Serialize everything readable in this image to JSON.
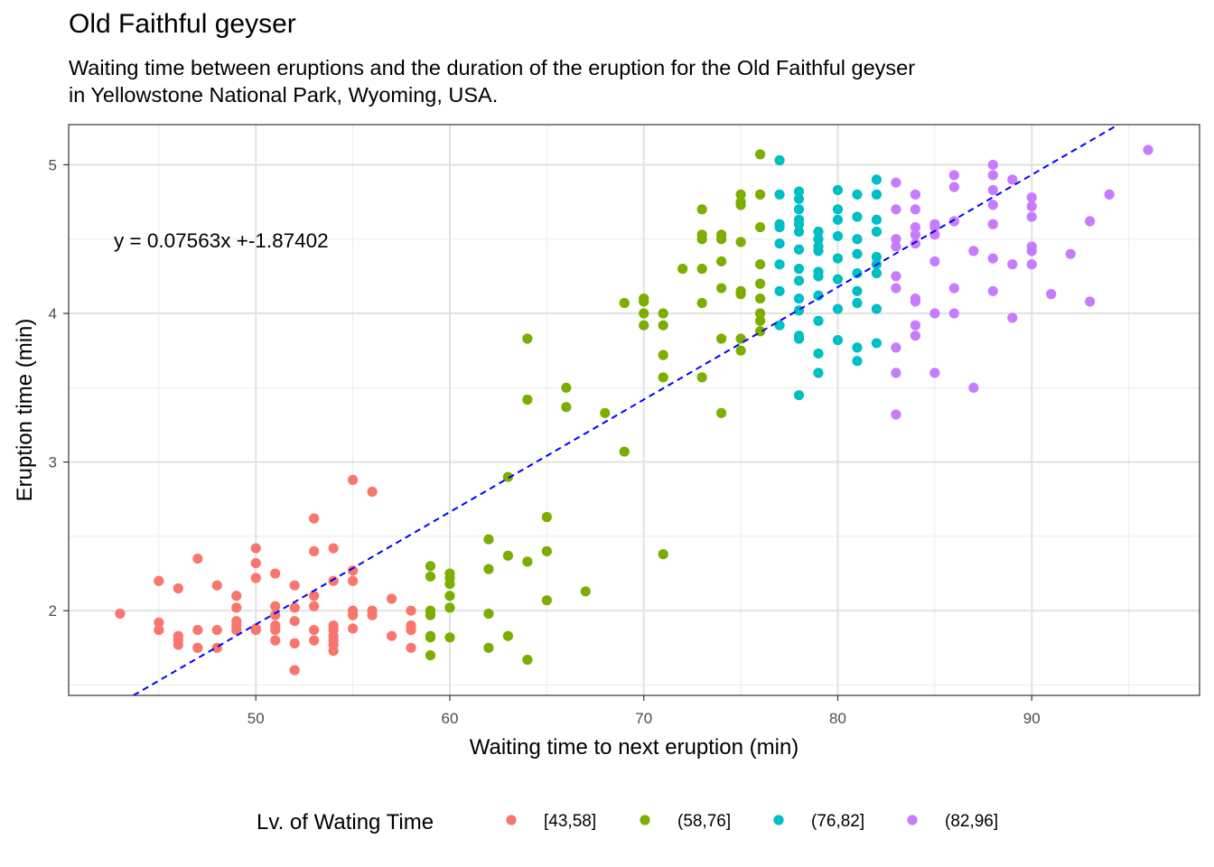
{
  "chart_data": {
    "type": "scatter",
    "title": "Old Faithful geyser",
    "subtitle_lines": [
      "Waiting time between eruptions and the duration of the eruption for the Old Faithful geyser",
      "in Yellowstone National Park, Wyoming, USA."
    ],
    "xlabel": "Waiting time to next eruption (min)",
    "ylabel": "Eruption time (min)",
    "xlim": [
      40.35,
      98.65
    ],
    "ylim": [
      1.43,
      5.27
    ],
    "xticks": [
      50,
      60,
      70,
      80,
      90
    ],
    "yticks": [
      2,
      3,
      4,
      5
    ],
    "grid": true,
    "legend_position": "bottom",
    "legend_title": "Lv. of Wating Time",
    "annotation": "y = 0.07563x +-1.87402",
    "regression": {
      "slope": 0.07563,
      "intercept": -1.87402
    },
    "series": [
      {
        "name": "[43,58]",
        "color": "#F8766D",
        "points": [
          [
            43,
            1.98
          ],
          [
            45,
            2.2
          ],
          [
            45,
            1.92
          ],
          [
            45,
            1.87
          ],
          [
            46,
            2.15
          ],
          [
            46,
            1.83
          ],
          [
            46,
            1.8
          ],
          [
            46,
            1.77
          ],
          [
            47,
            2.35
          ],
          [
            47,
            1.87
          ],
          [
            47,
            1.75
          ],
          [
            47,
            1.75
          ],
          [
            48,
            2.17
          ],
          [
            48,
            1.87
          ],
          [
            48,
            1.75
          ],
          [
            49,
            2.1
          ],
          [
            49,
            2.02
          ],
          [
            49,
            1.93
          ],
          [
            49,
            1.9
          ],
          [
            49,
            1.87
          ],
          [
            50,
            2.42
          ],
          [
            50,
            2.32
          ],
          [
            50,
            2.22
          ],
          [
            50,
            1.88
          ],
          [
            50,
            1.87
          ],
          [
            51,
            2.25
          ],
          [
            51,
            2.03
          ],
          [
            51,
            1.97
          ],
          [
            51,
            1.9
          ],
          [
            51,
            1.87
          ],
          [
            51,
            1.8
          ],
          [
            52,
            2.17
          ],
          [
            52,
            2.02
          ],
          [
            52,
            1.93
          ],
          [
            52,
            1.78
          ],
          [
            52,
            1.6
          ],
          [
            53,
            2.62
          ],
          [
            53,
            2.4
          ],
          [
            53,
            2.1
          ],
          [
            53,
            2.03
          ],
          [
            53,
            1.87
          ],
          [
            53,
            1.8
          ],
          [
            54,
            2.42
          ],
          [
            54,
            2.2
          ],
          [
            54,
            1.9
          ],
          [
            54,
            1.87
          ],
          [
            54,
            1.83
          ],
          [
            54,
            1.8
          ],
          [
            54,
            1.77
          ],
          [
            54,
            1.73
          ],
          [
            55,
            2.88
          ],
          [
            55,
            2.27
          ],
          [
            55,
            2.2
          ],
          [
            55,
            2.0
          ],
          [
            55,
            1.97
          ],
          [
            55,
            1.88
          ],
          [
            56,
            2.8
          ],
          [
            56,
            2.0
          ],
          [
            56,
            1.97
          ],
          [
            57,
            2.08
          ],
          [
            57,
            1.83
          ],
          [
            58,
            2.0
          ],
          [
            58,
            1.9
          ],
          [
            58,
            1.87
          ],
          [
            58,
            1.75
          ]
        ]
      },
      {
        "name": "(58,76]",
        "color": "#7CAE00",
        "points": [
          [
            59,
            2.3
          ],
          [
            59,
            2.23
          ],
          [
            59,
            2.0
          ],
          [
            59,
            1.97
          ],
          [
            59,
            1.83
          ],
          [
            59,
            1.82
          ],
          [
            59,
            1.7
          ],
          [
            60,
            2.25
          ],
          [
            60,
            2.22
          ],
          [
            60,
            2.18
          ],
          [
            60,
            2.1
          ],
          [
            60,
            2.02
          ],
          [
            60,
            1.82
          ],
          [
            62,
            2.48
          ],
          [
            62,
            2.28
          ],
          [
            62,
            1.98
          ],
          [
            62,
            1.75
          ],
          [
            63,
            2.9
          ],
          [
            63,
            2.37
          ],
          [
            63,
            1.83
          ],
          [
            64,
            3.83
          ],
          [
            64,
            3.42
          ],
          [
            64,
            2.33
          ],
          [
            64,
            1.67
          ],
          [
            65,
            2.63
          ],
          [
            65,
            2.4
          ],
          [
            65,
            2.07
          ],
          [
            66,
            3.5
          ],
          [
            66,
            3.37
          ],
          [
            67,
            2.13
          ],
          [
            68,
            3.33
          ],
          [
            69,
            4.07
          ],
          [
            69,
            3.07
          ],
          [
            70,
            4.1
          ],
          [
            70,
            4.08
          ],
          [
            70,
            4.0
          ],
          [
            70,
            3.92
          ],
          [
            71,
            4.0
          ],
          [
            71,
            3.92
          ],
          [
            71,
            3.72
          ],
          [
            71,
            3.57
          ],
          [
            71,
            2.38
          ],
          [
            72,
            4.3
          ],
          [
            73,
            4.7
          ],
          [
            73,
            4.53
          ],
          [
            73,
            4.5
          ],
          [
            73,
            4.3
          ],
          [
            73,
            4.07
          ],
          [
            73,
            3.57
          ],
          [
            74,
            4.53
          ],
          [
            74,
            4.5
          ],
          [
            74,
            4.35
          ],
          [
            74,
            4.17
          ],
          [
            74,
            3.83
          ],
          [
            74,
            3.33
          ],
          [
            75,
            4.8
          ],
          [
            75,
            4.75
          ],
          [
            75,
            4.73
          ],
          [
            75,
            4.48
          ],
          [
            75,
            4.15
          ],
          [
            75,
            4.13
          ],
          [
            75,
            3.83
          ],
          [
            75,
            3.75
          ],
          [
            76,
            5.07
          ],
          [
            76,
            4.8
          ],
          [
            76,
            4.58
          ],
          [
            76,
            4.33
          ],
          [
            76,
            4.2
          ],
          [
            76,
            4.1
          ],
          [
            76,
            4.0
          ],
          [
            76,
            3.95
          ],
          [
            76,
            3.88
          ]
        ]
      },
      {
        "name": "(76,82]",
        "color": "#00BFC4",
        "points": [
          [
            77,
            5.03
          ],
          [
            77,
            4.8
          ],
          [
            77,
            4.6
          ],
          [
            77,
            4.58
          ],
          [
            77,
            4.47
          ],
          [
            77,
            4.33
          ],
          [
            77,
            4.15
          ],
          [
            77,
            3.92
          ],
          [
            78,
            4.82
          ],
          [
            78,
            4.77
          ],
          [
            78,
            4.7
          ],
          [
            78,
            4.63
          ],
          [
            78,
            4.6
          ],
          [
            78,
            4.55
          ],
          [
            78,
            4.43
          ],
          [
            78,
            4.3
          ],
          [
            78,
            4.22
          ],
          [
            78,
            4.1
          ],
          [
            78,
            4.02
          ],
          [
            78,
            3.85
          ],
          [
            78,
            3.83
          ],
          [
            78,
            3.45
          ],
          [
            79,
            4.55
          ],
          [
            79,
            4.5
          ],
          [
            79,
            4.45
          ],
          [
            79,
            4.42
          ],
          [
            79,
            4.28
          ],
          [
            79,
            4.25
          ],
          [
            79,
            4.12
          ],
          [
            79,
            3.95
          ],
          [
            79,
            3.73
          ],
          [
            79,
            3.6
          ],
          [
            80,
            4.83
          ],
          [
            80,
            4.7
          ],
          [
            80,
            4.63
          ],
          [
            80,
            4.52
          ],
          [
            80,
            4.37
          ],
          [
            80,
            4.23
          ],
          [
            80,
            4.03
          ],
          [
            80,
            3.82
          ],
          [
            81,
            4.8
          ],
          [
            81,
            4.65
          ],
          [
            81,
            4.5
          ],
          [
            81,
            4.4
          ],
          [
            81,
            4.27
          ],
          [
            81,
            4.15
          ],
          [
            81,
            4.07
          ],
          [
            81,
            3.77
          ],
          [
            81,
            3.68
          ],
          [
            82,
            4.9
          ],
          [
            82,
            4.8
          ],
          [
            82,
            4.63
          ],
          [
            82,
            4.55
          ],
          [
            82,
            4.38
          ],
          [
            82,
            4.33
          ],
          [
            82,
            4.27
          ],
          [
            82,
            4.03
          ],
          [
            82,
            3.8
          ]
        ]
      },
      {
        "name": "(82,96]",
        "color": "#C77CFF",
        "points": [
          [
            83,
            4.88
          ],
          [
            83,
            4.7
          ],
          [
            83,
            4.5
          ],
          [
            83,
            4.45
          ],
          [
            83,
            4.25
          ],
          [
            83,
            4.17
          ],
          [
            83,
            3.77
          ],
          [
            83,
            3.6
          ],
          [
            83,
            3.32
          ],
          [
            84,
            4.8
          ],
          [
            84,
            4.7
          ],
          [
            84,
            4.58
          ],
          [
            84,
            4.53
          ],
          [
            84,
            4.47
          ],
          [
            84,
            4.1
          ],
          [
            84,
            4.08
          ],
          [
            84,
            3.92
          ],
          [
            84,
            3.85
          ],
          [
            85,
            4.6
          ],
          [
            85,
            4.58
          ],
          [
            85,
            4.53
          ],
          [
            85,
            4.35
          ],
          [
            85,
            4.0
          ],
          [
            85,
            3.6
          ],
          [
            86,
            4.93
          ],
          [
            86,
            4.85
          ],
          [
            86,
            4.62
          ],
          [
            86,
            4.17
          ],
          [
            86,
            4.0
          ],
          [
            87,
            4.42
          ],
          [
            87,
            3.5
          ],
          [
            88,
            5.0
          ],
          [
            88,
            4.93
          ],
          [
            88,
            4.83
          ],
          [
            88,
            4.73
          ],
          [
            88,
            4.6
          ],
          [
            88,
            4.37
          ],
          [
            88,
            4.15
          ],
          [
            89,
            4.9
          ],
          [
            89,
            4.33
          ],
          [
            89,
            3.97
          ],
          [
            90,
            4.78
          ],
          [
            90,
            4.72
          ],
          [
            90,
            4.65
          ],
          [
            90,
            4.45
          ],
          [
            90,
            4.42
          ],
          [
            90,
            4.33
          ],
          [
            91,
            4.13
          ],
          [
            92,
            4.4
          ],
          [
            93,
            4.62
          ],
          [
            93,
            4.08
          ],
          [
            94,
            4.8
          ],
          [
            96,
            5.1
          ]
        ]
      }
    ]
  }
}
